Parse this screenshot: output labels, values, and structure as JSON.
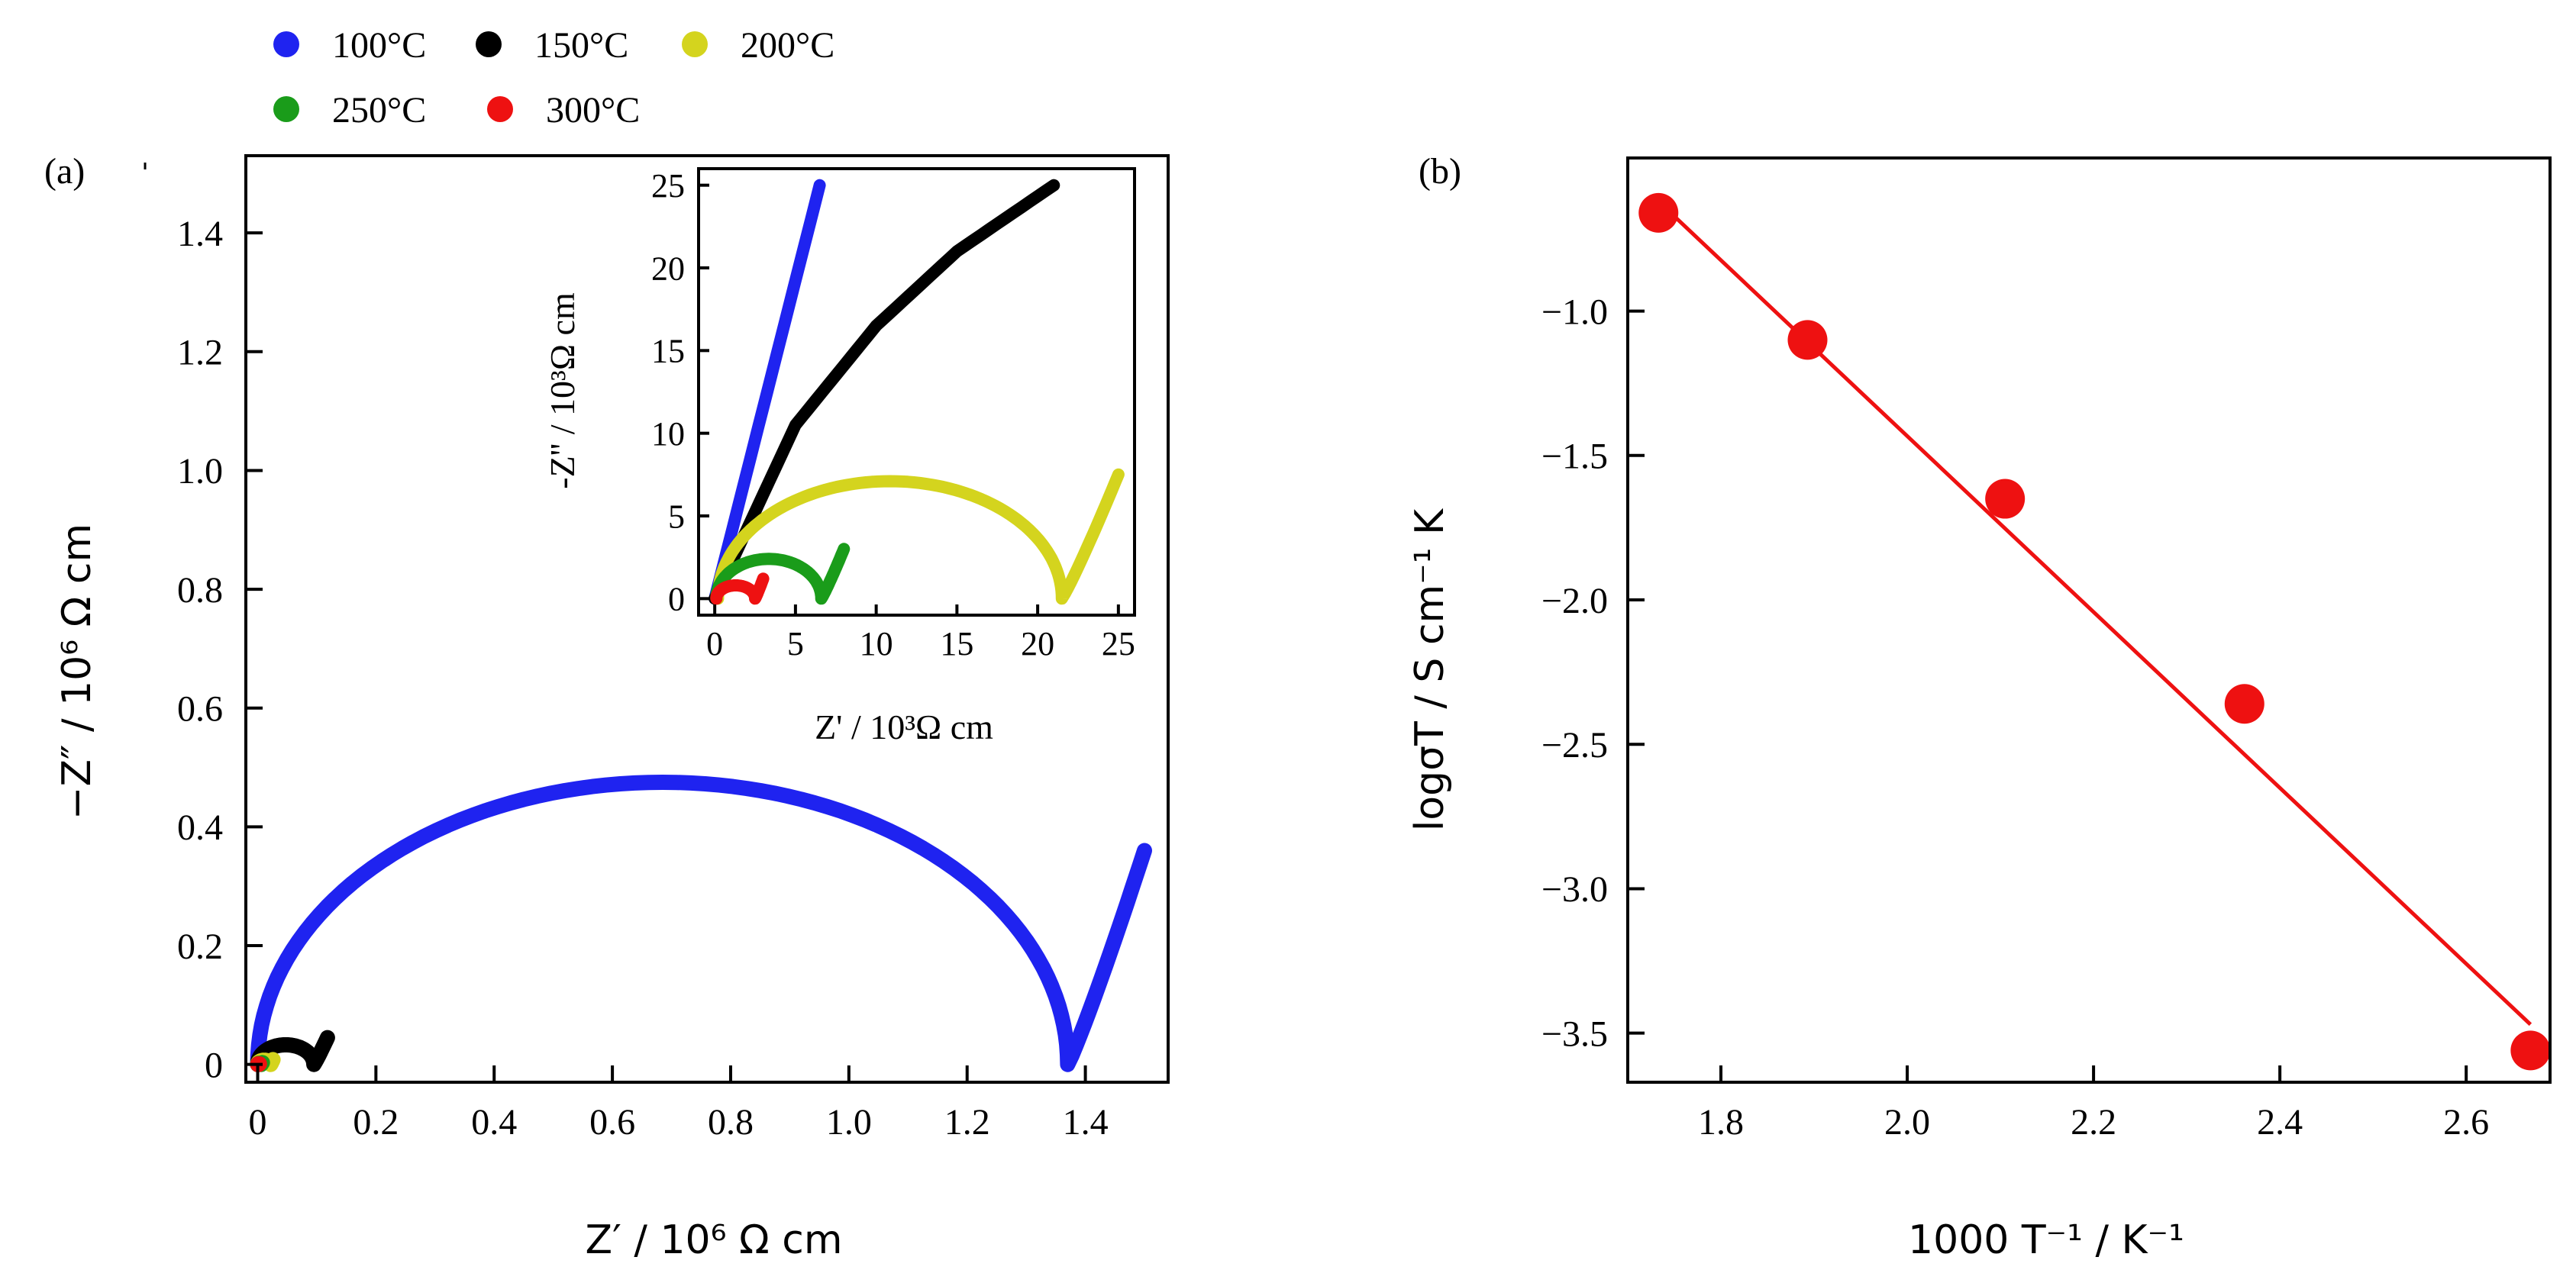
{
  "legend": {
    "items": [
      {
        "label": "100°C",
        "color": "#1f23f0"
      },
      {
        "label": "150°C",
        "color": "#000000"
      },
      {
        "label": "200°C",
        "color": "#d4d41e"
      },
      {
        "label": "250°C",
        "color": "#1a9c1a"
      },
      {
        "label": "300°C",
        "color": "#ee1111"
      }
    ]
  },
  "chart_data": [
    {
      "id": "a",
      "type": "scatter",
      "panel_label": "(a)",
      "xlabel": "Z′ / 10⁶ Ω cm",
      "ylabel": "−Z″ / 10⁶ Ω cm",
      "xlim": [
        -0.02,
        1.54
      ],
      "ylim": [
        -0.03,
        1.53
      ],
      "xticks": [
        "0",
        "0.2",
        "0.4",
        "0.6",
        "0.8",
        "1.0",
        "1.2",
        "1.4"
      ],
      "yticks": [
        "0",
        "0.2",
        "0.4",
        "0.6",
        "0.8",
        "1.0",
        "1.2",
        "1.4"
      ],
      "series": [
        {
          "name": "100°C",
          "color": "#1f23f0",
          "shape": "arc+tail",
          "arc_x": [
            0.0,
            1.37
          ],
          "arc_peak": 0.475,
          "tail_end": [
            1.5,
            0.36
          ]
        },
        {
          "name": "150°C",
          "color": "#000000",
          "shape": "arc+tail",
          "arc_x": [
            0.0,
            0.095
          ],
          "arc_peak": 0.033,
          "tail_end": [
            0.118,
            0.045
          ]
        },
        {
          "name": "200°C",
          "color": "#d4d41e",
          "shape": "arc+tail",
          "arc_x": [
            0.0,
            0.022
          ],
          "arc_peak": 0.007,
          "tail_end": [
            0.026,
            0.008
          ]
        },
        {
          "name": "250°C",
          "color": "#1a9c1a",
          "shape": "arc+tail",
          "arc_x": [
            0.0,
            0.006
          ],
          "arc_peak": 0.002,
          "tail_end": [
            0.008,
            0.003
          ]
        },
        {
          "name": "300°C",
          "color": "#ee1111",
          "shape": "arc+tail",
          "arc_x": [
            0.0,
            0.002
          ],
          "arc_peak": 0.001,
          "tail_end": [
            0.003,
            0.001
          ]
        }
      ],
      "inset": {
        "xlabel": "Z' / 10³Ω cm",
        "ylabel": "-Z'' / 10³Ω cm",
        "xlim": [
          -1,
          26
        ],
        "ylim": [
          -1,
          26
        ],
        "xticks": [
          "0",
          "5",
          "10",
          "15",
          "20",
          "25"
        ],
        "yticks": [
          "0",
          "5",
          "10",
          "15",
          "20",
          "25"
        ],
        "series": [
          {
            "name": "100°C",
            "color": "#1f23f0",
            "shape": "line",
            "points": [
              [
                0,
                0
              ],
              [
                6.5,
                25
              ]
            ]
          },
          {
            "name": "150°C",
            "color": "#000000",
            "shape": "curve",
            "points": [
              [
                0,
                0
              ],
              [
                5,
                10.5
              ],
              [
                10,
                16.5
              ],
              [
                15,
                21
              ],
              [
                21,
                25
              ]
            ]
          },
          {
            "name": "200°C",
            "color": "#d4d41e",
            "shape": "arc+tail",
            "arc_x": [
              0.2,
              21.5
            ],
            "arc_peak": 7.1,
            "tail_end": [
              25,
              7.5
            ]
          },
          {
            "name": "250°C",
            "color": "#1a9c1a",
            "shape": "arc+tail",
            "arc_x": [
              0.1,
              6.6
            ],
            "arc_peak": 2.4,
            "tail_end": [
              8,
              3
            ]
          },
          {
            "name": "300°C",
            "color": "#ee1111",
            "shape": "arc+tail",
            "arc_x": [
              0.1,
              2.5
            ],
            "arc_peak": 0.8,
            "tail_end": [
              3,
              1.2
            ]
          }
        ]
      }
    },
    {
      "id": "b",
      "type": "scatter",
      "panel_label": "(b)",
      "xlabel": "1000 T⁻¹ / K⁻¹",
      "ylabel": "logσT / S cm⁻¹ K",
      "xlim": [
        1.7,
        2.69
      ],
      "ylim": [
        -3.67,
        -0.47
      ],
      "xticks": [
        "1.8",
        "2.0",
        "2.2",
        "2.4",
        "2.6"
      ],
      "yticks": [
        "−1.0",
        "−1.5",
        "−2.0",
        "−2.5",
        "−3.0",
        "−3.5"
      ],
      "x": [
        1.733,
        1.893,
        2.105,
        2.362,
        2.669
      ],
      "y": [
        -0.66,
        -1.1,
        -1.65,
        -2.36,
        -3.56
      ],
      "marker_color": "#ee1111",
      "fit_line": {
        "x": [
          1.733,
          2.669
        ],
        "y": [
          -0.62,
          -3.47
        ],
        "color": "#ee1111"
      }
    }
  ]
}
